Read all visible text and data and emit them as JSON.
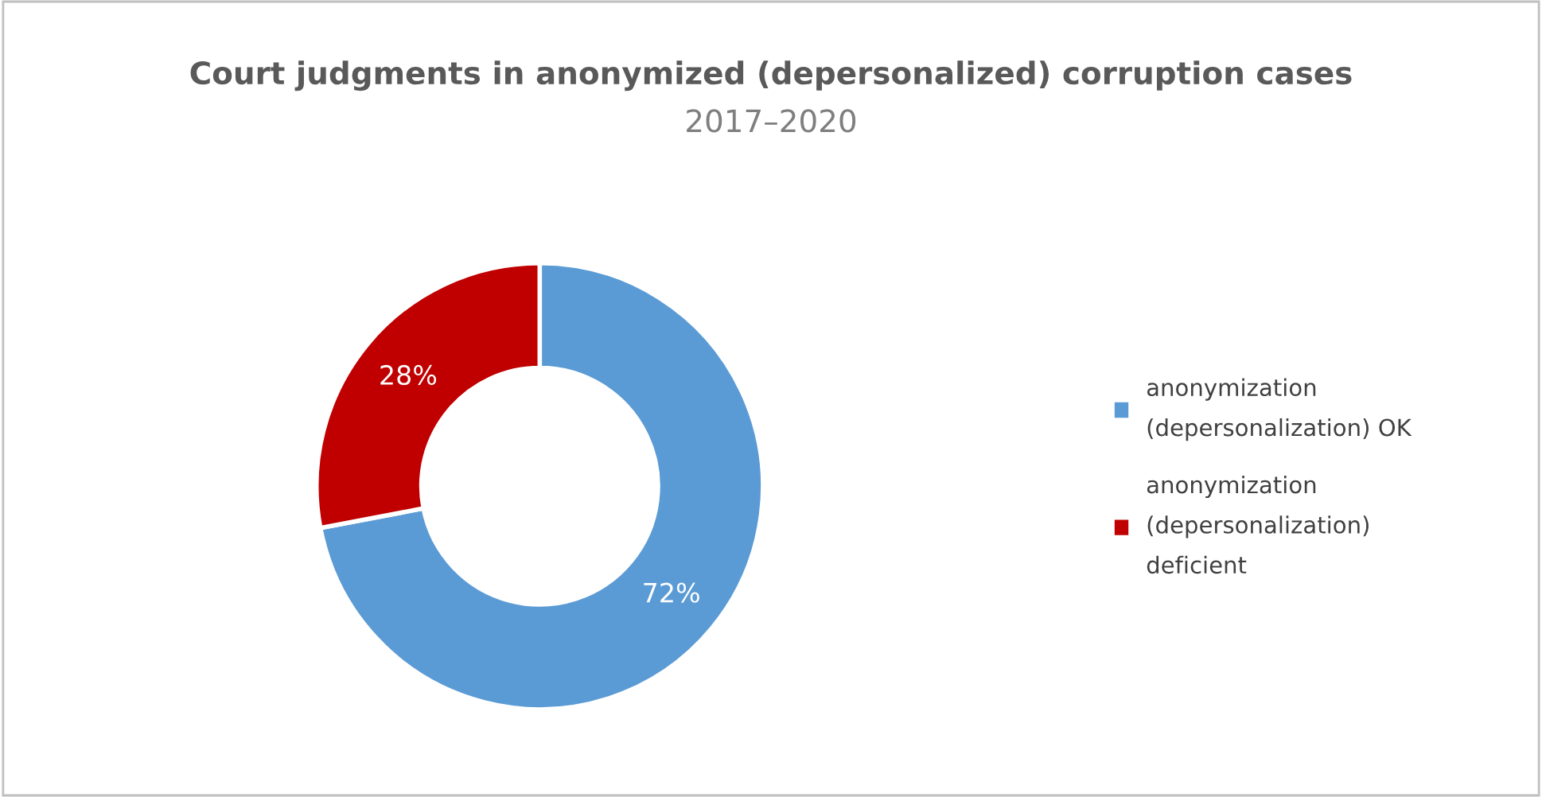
{
  "chart_data": {
    "type": "donut",
    "title": "Court judgments in anonymized (depersonalized) corruption cases",
    "subtitle": "2017–2020",
    "categories": [
      "anonymization\n(depersonalization) OK",
      "anonymization\n(depersonalization)\ndeficient"
    ],
    "values": [
      72,
      28
    ],
    "colors": [
      "#5b9bd5",
      "#c00000"
    ],
    "value_labels": [
      "72%",
      "28%"
    ],
    "legend": "right"
  }
}
